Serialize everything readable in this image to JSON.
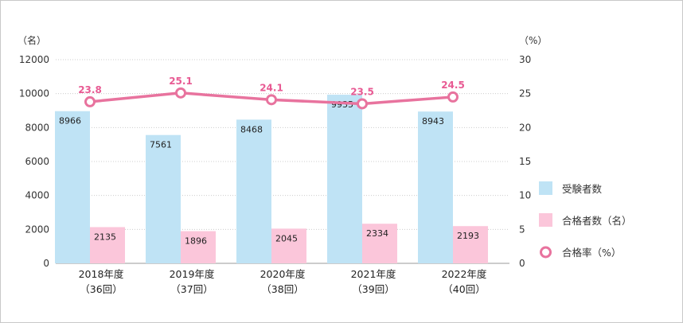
{
  "chart_data": {
    "type": "bar",
    "left_unit": "（名）",
    "right_unit": "（%）",
    "categories": [
      {
        "year": "2018年度",
        "round": "（36回）"
      },
      {
        "year": "2019年度",
        "round": "（37回）"
      },
      {
        "year": "2020年度",
        "round": "（38回）"
      },
      {
        "year": "2021年度",
        "round": "（39回）"
      },
      {
        "year": "2022年度",
        "round": "（40回）"
      }
    ],
    "left_axis": {
      "min": 0,
      "max": 12000,
      "ticks": [
        0,
        2000,
        4000,
        6000,
        8000,
        10000,
        12000
      ]
    },
    "right_axis": {
      "min": 0,
      "max": 30,
      "ticks": [
        0,
        5,
        10,
        15,
        20,
        25,
        30
      ]
    },
    "series": [
      {
        "name": "受験者数",
        "kind": "bar",
        "axis": "left",
        "color": "#bfe3f5",
        "values": [
          8966,
          7561,
          8468,
          9935,
          8943
        ]
      },
      {
        "name": "合格者数（名）",
        "kind": "bar",
        "axis": "left",
        "color": "#fbc6da",
        "values": [
          2135,
          1896,
          2045,
          2334,
          2193
        ]
      },
      {
        "name": "合格率（%）",
        "kind": "line",
        "axis": "right",
        "color": "#e8739e",
        "values": [
          23.8,
          25.1,
          24.1,
          23.5,
          24.5
        ]
      }
    ],
    "grid": true,
    "legend_position": "right"
  }
}
